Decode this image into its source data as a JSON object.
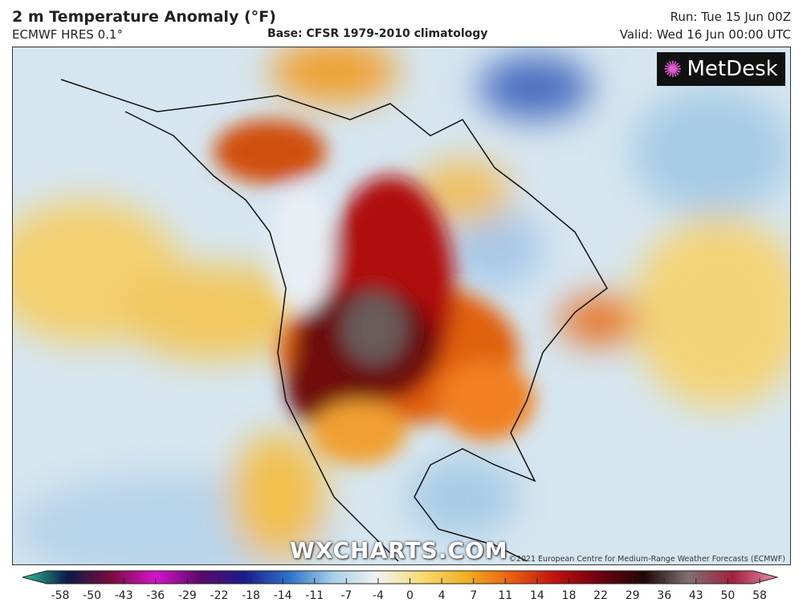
{
  "header": {
    "title": "2 m Temperature Anomaly (°F)",
    "model": "ECMWF HRES 0.1°",
    "base": "Base: CFSR 1979-2010 climatology",
    "run": "Run: Tue 15 Jun 00Z",
    "valid": "Valid: Wed 16 Jun 00:00 UTC"
  },
  "map": {
    "logo_text": "MetDesk",
    "watermark": "WXCHARTS.COM",
    "copyright": "©2021 European Centre for Medium-Range Weather Forecasts (ECMWF)",
    "region": "North America"
  },
  "colorbar": {
    "ticks": [
      "-58",
      "-50",
      "-43",
      "-36",
      "-29",
      "-22",
      "-18",
      "-14",
      "-11",
      "-7",
      "-4",
      "0",
      "4",
      "7",
      "11",
      "14",
      "18",
      "22",
      "29",
      "36",
      "43",
      "50",
      "58"
    ],
    "colors": [
      "#2fc49a",
      "#0c1a48",
      "#7a0c3c",
      "#d414cc",
      "#5a0a6a",
      "#1c1c8c",
      "#2c72c8",
      "#a8d0e8",
      "#f2f2f2",
      "#f6dc72",
      "#f0b020",
      "#e86010",
      "#c01010",
      "#6c0010",
      "#200808",
      "#807070",
      "#a02040",
      "#e890aa"
    ]
  }
}
